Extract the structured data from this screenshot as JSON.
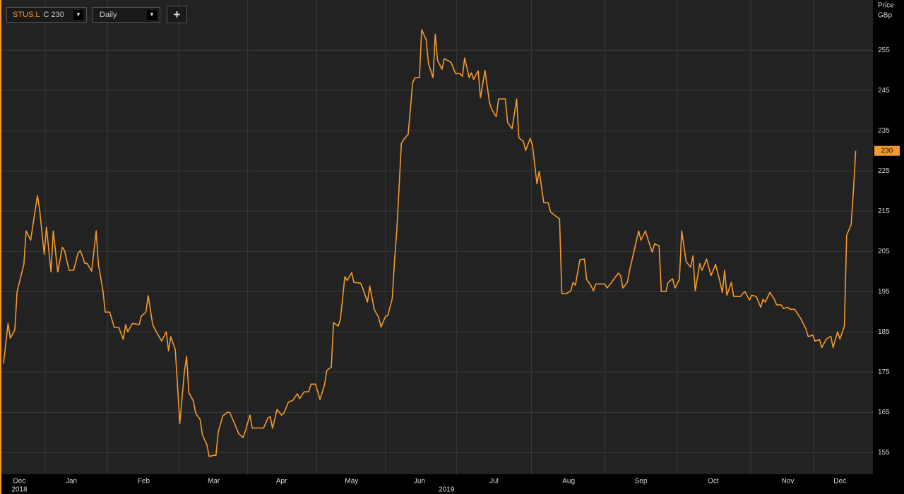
{
  "toolbar": {
    "symbol": "STUS.L",
    "close_prefix": "C",
    "interval": "Daily",
    "add_button": "+"
  },
  "chart_data": {
    "type": "line",
    "y_axis_title": "Price",
    "y_axis_unit": "GBp",
    "color": "#f4992f",
    "grid": true,
    "last_price": 230,
    "xlim": [
      0,
      384
    ],
    "ylim": [
      149.6,
      267.5
    ],
    "yticks": [
      155,
      165,
      175,
      185,
      195,
      205,
      215,
      225,
      235,
      245,
      255
    ],
    "xticks": [
      {
        "value": 7,
        "label": "Dec"
      },
      {
        "value": 30,
        "label": "Jan"
      },
      {
        "value": 62,
        "label": "Feb"
      },
      {
        "value": 93,
        "label": "Mar"
      },
      {
        "value": 123,
        "label": "Apr"
      },
      {
        "value": 154,
        "label": "May"
      },
      {
        "value": 184,
        "label": "Jun"
      },
      {
        "value": 217,
        "label": "Jul"
      },
      {
        "value": 250,
        "label": "Aug"
      },
      {
        "value": 282,
        "label": "Sep"
      },
      {
        "value": 314,
        "label": "Oct"
      },
      {
        "value": 347,
        "label": "Nov"
      },
      {
        "value": 370,
        "label": "Dec"
      }
    ],
    "year_labels": [
      {
        "value": 7,
        "label": "2018"
      },
      {
        "value": 196,
        "label": "2019"
      }
    ],
    "x": [
      0,
      2,
      3,
      5,
      6,
      9,
      10,
      12,
      15,
      16,
      18,
      19,
      21,
      22,
      24,
      26,
      27,
      29,
      31,
      33,
      34,
      36,
      37,
      39,
      41,
      42,
      44,
      45,
      47,
      49,
      51,
      53,
      54,
      55,
      57,
      60,
      61,
      63,
      64,
      66,
      68,
      70,
      72,
      73,
      74,
      76,
      78,
      80,
      81,
      82,
      84,
      85,
      87,
      88,
      90,
      91,
      93,
      94,
      95,
      97,
      99,
      100,
      102,
      104,
      106,
      107,
      109,
      110,
      112,
      115,
      117,
      118,
      119,
      121,
      123,
      124,
      126,
      128,
      130,
      131,
      133,
      135,
      136,
      138,
      140,
      142,
      143,
      145,
      146,
      148,
      149,
      151,
      152,
      154,
      155,
      158,
      159,
      161,
      162,
      164,
      166,
      167,
      169,
      170,
      172,
      173,
      174,
      176,
      177,
      179,
      181,
      182,
      184,
      185,
      187,
      188,
      190,
      191,
      192,
      194,
      195,
      198,
      200,
      202,
      203,
      204,
      206,
      207,
      208,
      210,
      211,
      213,
      215,
      216,
      218,
      219,
      222,
      223,
      225,
      227,
      228,
      230,
      231,
      233,
      234,
      236,
      237,
      239,
      241,
      242,
      244,
      246,
      247,
      249,
      251,
      252,
      253,
      255,
      257,
      258,
      260,
      261,
      262,
      266,
      267,
      269,
      272,
      273,
      274,
      276,
      277,
      279,
      281,
      282,
      284,
      285,
      287,
      288,
      290,
      291,
      293,
      294,
      296,
      297,
      299,
      300,
      302,
      304,
      305,
      306,
      308,
      309,
      311,
      313,
      315,
      317,
      318,
      319,
      320,
      322,
      323,
      326,
      327,
      328,
      330,
      331,
      333,
      335,
      336,
      337,
      339,
      341,
      342,
      344,
      345,
      347,
      348,
      350,
      352,
      353,
      355,
      356,
      358,
      359,
      361,
      362,
      364,
      366,
      367,
      369,
      370,
      372,
      373,
      375,
      376,
      377
    ],
    "values": [
      177.1,
      187.1,
      183.4,
      185.5,
      195,
      201.8,
      210.1,
      207.8,
      218.9,
      215.2,
      204.3,
      211,
      199.9,
      210.1,
      199.9,
      206,
      205.2,
      200.3,
      200.3,
      204.6,
      205.2,
      202,
      202,
      200.1,
      210.1,
      201.7,
      195.2,
      189.9,
      189.9,
      186.1,
      186.1,
      183.1,
      186.8,
      185,
      187.1,
      186.8,
      188.9,
      189.9,
      194,
      186.8,
      184.6,
      182.7,
      185,
      180.3,
      183.8,
      180.6,
      162.2,
      175,
      178.9,
      169.9,
      167.8,
      164.8,
      163.2,
      159.4,
      156.9,
      154,
      154.3,
      154.3,
      160.1,
      164.1,
      165,
      165,
      162.5,
      159.7,
      158.7,
      160.4,
      164.3,
      161.1,
      161.1,
      161.1,
      163.6,
      163.9,
      161,
      165.7,
      164.3,
      164.8,
      167.5,
      168,
      169.6,
      168.4,
      170.1,
      170.1,
      172,
      172,
      168.2,
      171.8,
      175.4,
      176.2,
      187.3,
      186.4,
      188,
      198.7,
      197.8,
      199.7,
      197.3,
      197.1,
      195.7,
      192.4,
      196.4,
      190.6,
      188.5,
      186.2,
      188.9,
      189,
      193.4,
      202.9,
      210.3,
      231.8,
      232.8,
      234.1,
      246.9,
      248.2,
      248.2,
      260.1,
      257.6,
      251.7,
      248.2,
      259,
      252.5,
      250.3,
      252.9,
      252,
      249.2,
      249.2,
      248.5,
      253.1,
      248.2,
      249.4,
      247.8,
      249.9,
      243.2,
      250,
      242,
      240.3,
      238.5,
      242.9,
      242.9,
      237.1,
      235.5,
      242.9,
      233.2,
      232.4,
      230.1,
      233.1,
      231.5,
      221.8,
      224.9,
      217.1,
      217.1,
      214.8,
      213.9,
      213.1,
      194.5,
      194.5,
      195.2,
      197.3,
      196.6,
      202.9,
      203.1,
      198,
      196.4,
      195.2,
      196.9,
      196.9,
      195.9,
      197.3,
      199.6,
      199,
      195.9,
      197.3,
      200.3,
      205.2,
      210.1,
      207.8,
      210.1,
      208.2,
      204.8,
      206.9,
      206.4,
      195,
      195,
      197.3,
      198.2,
      195.9,
      198,
      210.1,
      202.4,
      201.1,
      203.9,
      195.2,
      202,
      200.3,
      203.1,
      199,
      201.8,
      197.3,
      194.8,
      200.3,
      194.1,
      197.3,
      193.8,
      193.8,
      194.5,
      195,
      192.9,
      194.1,
      193.8,
      191.1,
      193.1,
      192.4,
      194.8,
      193.1,
      191.7,
      191.7,
      190.8,
      191.1,
      190.6,
      190.6,
      188.9,
      188,
      185.7,
      183.8,
      184.2,
      182.7,
      183.1,
      181.1,
      183.2,
      183.9,
      181.1,
      185,
      183.2,
      186.4,
      209,
      211.7,
      220.1,
      230
    ]
  }
}
